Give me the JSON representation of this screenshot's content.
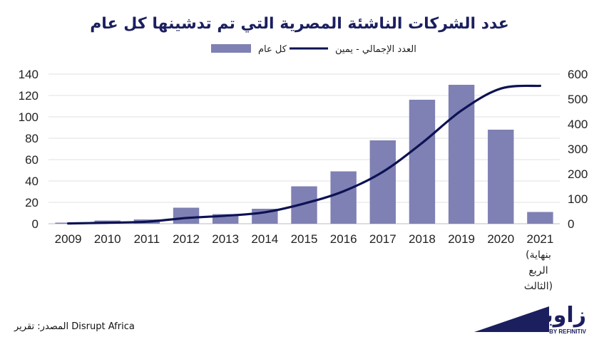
{
  "chart_data": {
    "type": "bar",
    "title": "عدد الشركات الناشئة المصرية التي تم تدشينها كل عام",
    "categories": [
      "2009",
      "2010",
      "2011",
      "2012",
      "2013",
      "2014",
      "2015",
      "2016",
      "2017",
      "2018",
      "2019",
      "2020",
      "2021"
    ],
    "last_category_note": [
      "(بنهاية",
      "الربع",
      "الثالث)"
    ],
    "series": [
      {
        "name": "كل عام",
        "type": "bar",
        "axis": "left",
        "color": "#7f80b3",
        "values": [
          1,
          3,
          4,
          15,
          9,
          14,
          35,
          49,
          78,
          116,
          130,
          88,
          11
        ]
      },
      {
        "name": "العدد الإجمالي - يمين",
        "type": "line",
        "axis": "right",
        "color": "#0c1253",
        "values": [
          1,
          4,
          8,
          23,
          32,
          46,
          81,
          130,
          208,
          324,
          454,
          542,
          553
        ]
      }
    ],
    "left_axis": {
      "min": 0,
      "max": 140,
      "ticks": [
        0,
        20,
        40,
        60,
        80,
        100,
        120,
        140
      ]
    },
    "right_axis": {
      "min": 0,
      "max": 600,
      "ticks": [
        0,
        100,
        200,
        300,
        400,
        500,
        600
      ]
    },
    "grid": true,
    "legend_position": "top"
  },
  "source_text": "المصدر: تقرير Disrupt Africa",
  "brand": {
    "name": "زاوية",
    "subtitle": "BY REFINITIV"
  }
}
